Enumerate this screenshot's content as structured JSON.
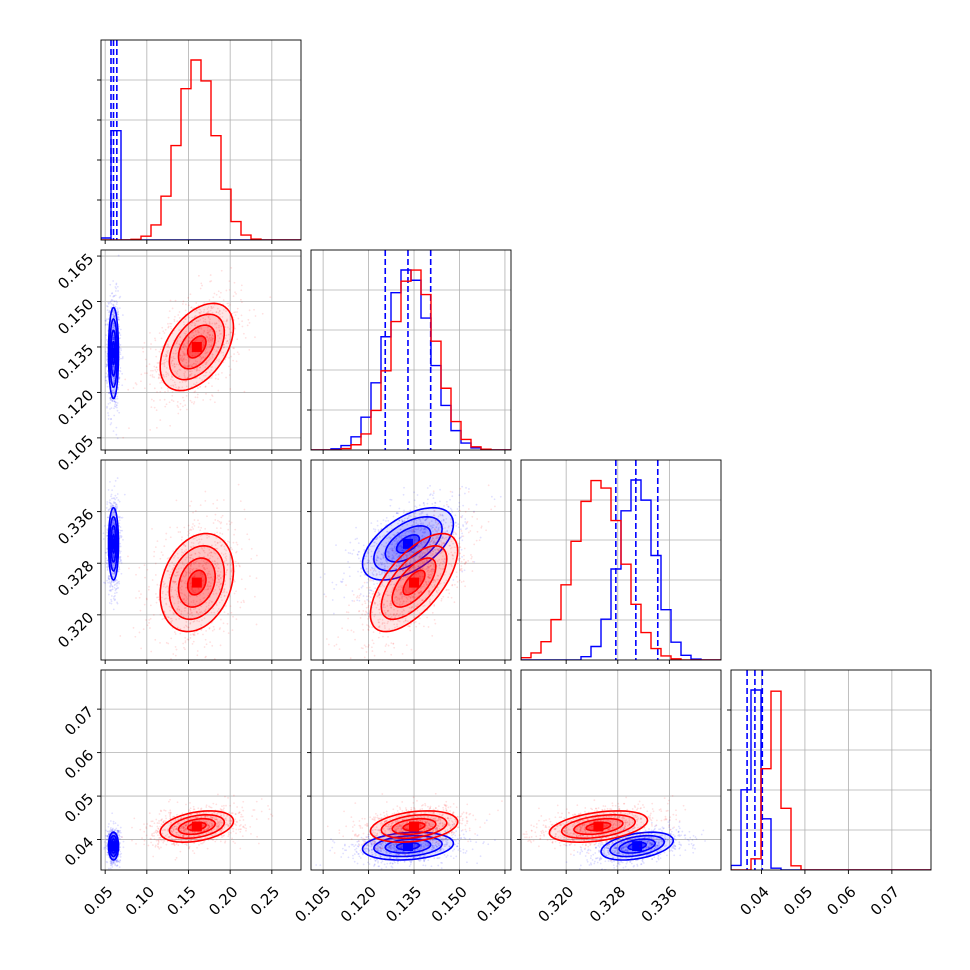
{
  "chart_data": {
    "type": "corner",
    "grid": true,
    "parameters": [
      {
        "ticks": [
          0.05,
          0.1,
          0.15,
          0.2,
          0.25
        ],
        "tick_labels": [
          "0.05",
          "0.10",
          "0.15",
          "0.20",
          "0.25"
        ],
        "range": [
          0.045,
          0.285
        ]
      },
      {
        "ticks": [
          0.105,
          0.12,
          0.135,
          0.15,
          0.165
        ],
        "tick_labels": [
          "0.105",
          "0.120",
          "0.135",
          "0.150",
          "0.165"
        ],
        "range": [
          0.101,
          0.167
        ]
      },
      {
        "ticks": [
          0.32,
          0.328,
          0.336
        ],
        "tick_labels": [
          "0.320",
          "0.328",
          "0.336"
        ],
        "range": [
          0.313,
          0.344
        ]
      },
      {
        "ticks": [
          0.04,
          0.05,
          0.06,
          0.07
        ],
        "tick_labels": [
          "0.04",
          "0.05",
          "0.06",
          "0.07"
        ],
        "range": [
          0.033,
          0.079
        ]
      }
    ],
    "series": [
      {
        "color": "#0000ff",
        "means": [
          0.06,
          0.133,
          0.331,
          0.0385
        ],
        "sigmas": [
          0.003,
          0.0075,
          0.0028,
          0.0016
        ],
        "correlations": [
          [
            0,
            1,
            0.0
          ],
          [
            0,
            2,
            0.0
          ],
          [
            0,
            3,
            0.0
          ],
          [
            1,
            2,
            0.55
          ],
          [
            1,
            3,
            0.2
          ],
          [
            2,
            3,
            0.4
          ]
        ],
        "quantiles_shown": true,
        "quantiles": [
          [
            0.057,
            0.06,
            0.064
          ],
          [
            0.1255,
            0.133,
            0.1405
          ],
          [
            0.3277,
            0.3308,
            0.3342
          ],
          [
            0.0367,
            0.0385,
            0.0402
          ]
        ]
      },
      {
        "color": "#ff0000",
        "means": [
          0.16,
          0.135,
          0.325,
          0.043
        ],
        "sigmas": [
          0.022,
          0.0072,
          0.0038,
          0.0018
        ],
        "correlations": [
          [
            0,
            1,
            0.45
          ],
          [
            0,
            2,
            0.25
          ],
          [
            0,
            3,
            0.35
          ],
          [
            1,
            2,
            0.65
          ],
          [
            1,
            3,
            0.3
          ],
          [
            2,
            3,
            0.4
          ]
        ],
        "quantiles_shown": false,
        "quantiles": []
      }
    ]
  }
}
